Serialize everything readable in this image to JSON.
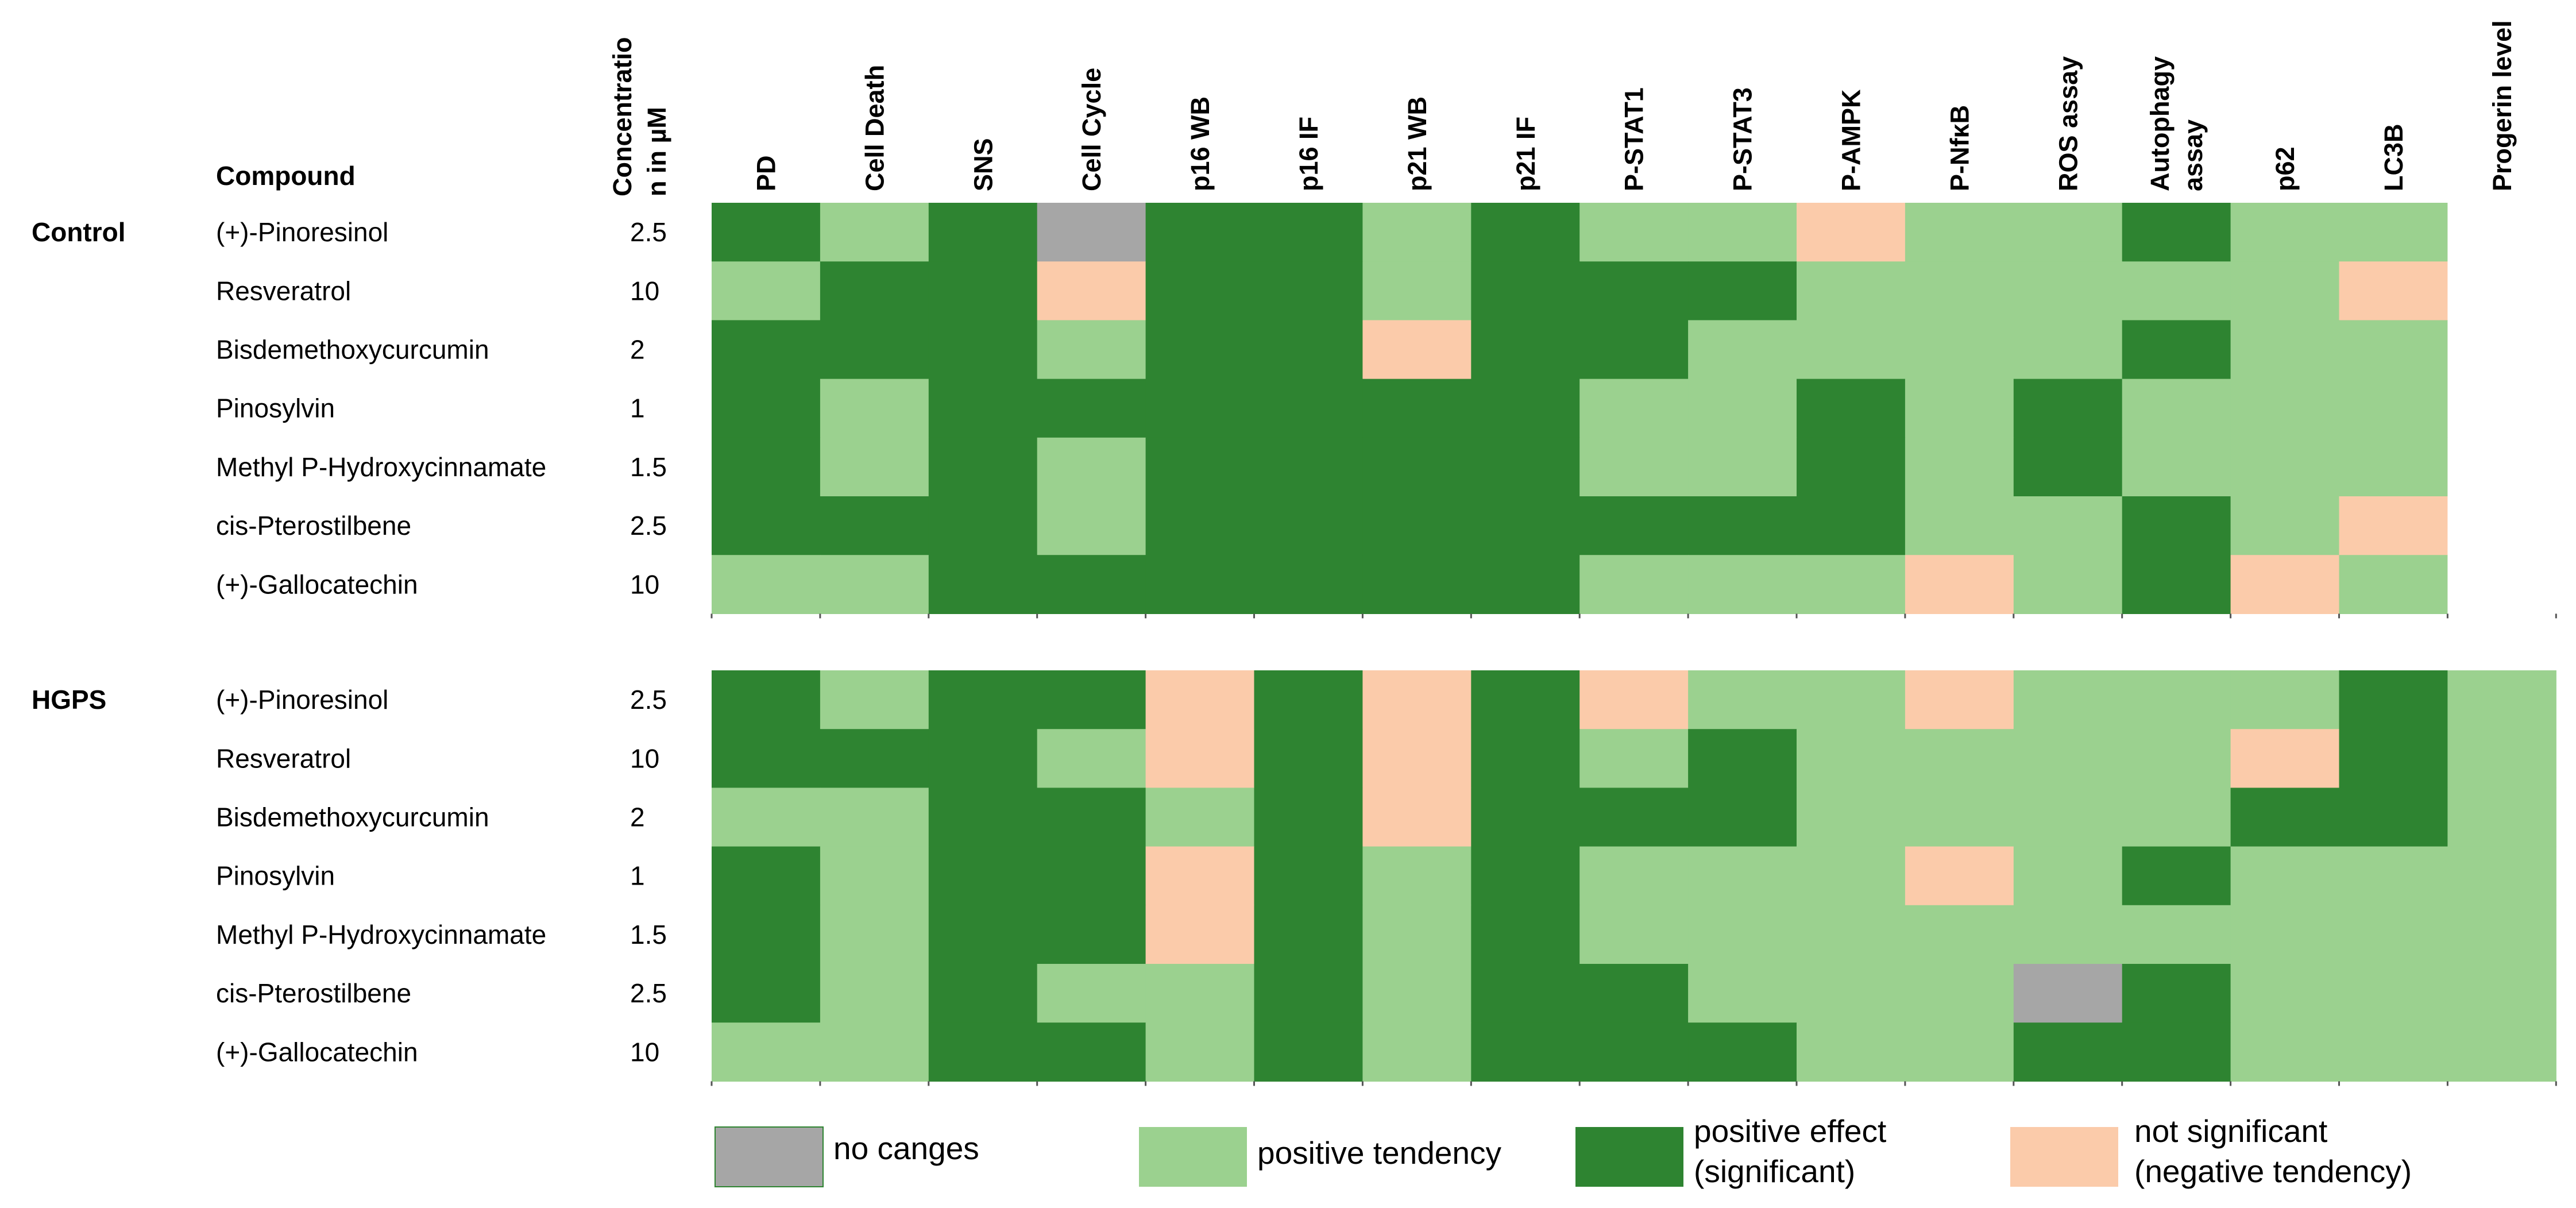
{
  "chart_data": {
    "type": "heatmap",
    "title": "",
    "header": {
      "compound": "Compound",
      "concentration": [
        "Concentratio",
        "n in µM"
      ]
    },
    "columns": [
      [
        "PD"
      ],
      [
        "Cell Death"
      ],
      [
        "SNS"
      ],
      [
        "Cell Cycle"
      ],
      [
        "p16 WB"
      ],
      [
        "p16 IF"
      ],
      [
        "p21 WB"
      ],
      [
        "p21 IF"
      ],
      [
        "P-STAT1"
      ],
      [
        "P-STAT3"
      ],
      [
        "P-AMPK"
      ],
      [
        "P-NfκB"
      ],
      [
        "ROS assay"
      ],
      [
        "Autophagy",
        "assay"
      ],
      [
        "p62"
      ],
      [
        "LC3B"
      ],
      [
        "Progerin level"
      ]
    ],
    "legend": [
      {
        "code": "N",
        "lines": [
          "no canges"
        ]
      },
      {
        "code": "T",
        "lines": [
          "positive tendency"
        ]
      },
      {
        "code": "S",
        "lines": [
          "positive effect",
          "(significant)"
        ]
      },
      {
        "code": "X",
        "lines": [
          "not significant",
          "(negative tendency)"
        ]
      }
    ],
    "colors": {
      "N": "#a6a6a6",
      "T": "#9bd18f",
      "S": "#2e8431",
      "X": "#fbcbaa",
      "E": "#ffffff"
    },
    "groups": [
      {
        "name": "Control",
        "rows": [
          {
            "compound": "(+)-Pinoresinol",
            "conc": "2.5",
            "cells": [
              "S",
              "T",
              "S",
              "N",
              "S",
              "S",
              "T",
              "S",
              "T",
              "T",
              "X",
              "T",
              "T",
              "S",
              "T",
              "T",
              "E"
            ]
          },
          {
            "compound": "Resveratrol",
            "conc": "10",
            "cells": [
              "T",
              "S",
              "S",
              "X",
              "S",
              "S",
              "T",
              "S",
              "S",
              "S",
              "T",
              "T",
              "T",
              "T",
              "T",
              "X",
              "E"
            ]
          },
          {
            "compound": "Bisdemethoxycurcumin",
            "conc": "2",
            "cells": [
              "S",
              "S",
              "S",
              "T",
              "S",
              "S",
              "X",
              "S",
              "S",
              "T",
              "T",
              "T",
              "T",
              "S",
              "T",
              "T",
              "E"
            ]
          },
          {
            "compound": "Pinosylvin",
            "conc": "1",
            "cells": [
              "S",
              "T",
              "S",
              "S",
              "S",
              "S",
              "S",
              "S",
              "T",
              "T",
              "S",
              "T",
              "S",
              "T",
              "T",
              "T",
              "E"
            ]
          },
          {
            "compound": "Methyl P-Hydroxycinnamate",
            "conc": "1.5",
            "cells": [
              "S",
              "T",
              "S",
              "T",
              "S",
              "S",
              "S",
              "S",
              "T",
              "T",
              "S",
              "T",
              "S",
              "T",
              "T",
              "T",
              "E"
            ]
          },
          {
            "compound": "cis-Pterostilbene",
            "conc": "2.5",
            "cells": [
              "S",
              "S",
              "S",
              "T",
              "S",
              "S",
              "S",
              "S",
              "S",
              "S",
              "S",
              "T",
              "T",
              "S",
              "T",
              "X",
              "E"
            ]
          },
          {
            "compound": "(+)-Gallocatechin",
            "conc": "10",
            "cells": [
              "T",
              "T",
              "S",
              "S",
              "S",
              "S",
              "S",
              "S",
              "T",
              "T",
              "T",
              "X",
              "T",
              "S",
              "X",
              "T",
              "E"
            ]
          }
        ]
      },
      {
        "name": "HGPS",
        "rows": [
          {
            "compound": "(+)-Pinoresinol",
            "conc": "2.5",
            "cells": [
              "S",
              "T",
              "S",
              "S",
              "X",
              "S",
              "X",
              "S",
              "X",
              "T",
              "T",
              "X",
              "T",
              "T",
              "T",
              "S",
              "T"
            ]
          },
          {
            "compound": "Resveratrol",
            "conc": "10",
            "cells": [
              "S",
              "S",
              "S",
              "T",
              "X",
              "S",
              "X",
              "S",
              "T",
              "S",
              "T",
              "T",
              "T",
              "T",
              "X",
              "S",
              "T"
            ]
          },
          {
            "compound": "Bisdemethoxycurcumin",
            "conc": "2",
            "cells": [
              "T",
              "T",
              "S",
              "S",
              "T",
              "S",
              "X",
              "S",
              "S",
              "S",
              "T",
              "T",
              "T",
              "T",
              "S",
              "S",
              "T"
            ]
          },
          {
            "compound": "Pinosylvin",
            "conc": "1",
            "cells": [
              "S",
              "T",
              "S",
              "S",
              "X",
              "S",
              "T",
              "S",
              "T",
              "T",
              "T",
              "X",
              "T",
              "S",
              "T",
              "T",
              "T"
            ]
          },
          {
            "compound": "Methyl P-Hydroxycinnamate",
            "conc": "1.5",
            "cells": [
              "S",
              "T",
              "S",
              "S",
              "X",
              "S",
              "T",
              "S",
              "T",
              "T",
              "T",
              "T",
              "T",
              "T",
              "T",
              "T",
              "T"
            ]
          },
          {
            "compound": "cis-Pterostilbene",
            "conc": "2.5",
            "cells": [
              "S",
              "T",
              "S",
              "T",
              "T",
              "S",
              "T",
              "S",
              "S",
              "T",
              "T",
              "T",
              "N",
              "S",
              "T",
              "T",
              "T"
            ]
          },
          {
            "compound": "(+)-Gallocatechin",
            "conc": "10",
            "cells": [
              "T",
              "T",
              "S",
              "S",
              "T",
              "S",
              "T",
              "S",
              "S",
              "S",
              "T",
              "T",
              "S",
              "S",
              "T",
              "T",
              "T"
            ]
          }
        ]
      }
    ]
  }
}
